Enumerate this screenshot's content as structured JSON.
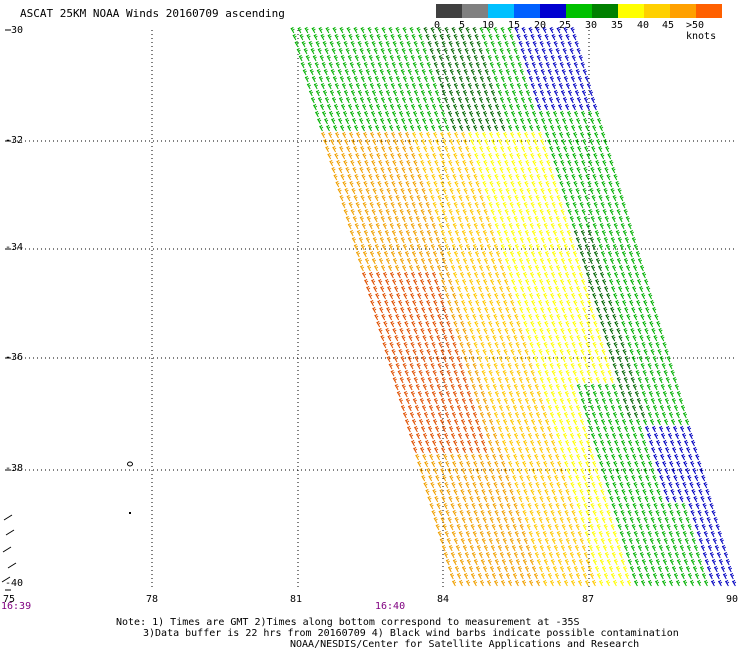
{
  "title": "ASCAT 25KM NOAA Winds 20160709 ascending",
  "legend": {
    "colors": [
      "#404040",
      "#808080",
      "#00c0ff",
      "#0060ff",
      "#0000d0",
      "#00c000",
      "#008000",
      "#ffff00",
      "#ffd000",
      "#ffa000",
      "#ff6000",
      "#e00000",
      "#a02020",
      "#804010",
      "#ff00ff",
      "#c000c0",
      "#8000c0",
      "#400080"
    ],
    "labels": [
      "0",
      "5",
      "10",
      "15",
      "20",
      "25",
      "30",
      "35",
      "40",
      "45",
      ">50 knots"
    ]
  },
  "y_axis": [
    "-30",
    "-32",
    "-34",
    "-36",
    "-38",
    "-40"
  ],
  "x_axis": [
    "75",
    "78",
    "81",
    "84",
    "87",
    "90"
  ],
  "time_labels": [
    "16:39",
    "16:40"
  ],
  "notes": {
    "line1": "Note: 1) Times are GMT 2)Times along bottom correspond to measurement at -35S",
    "line2": "3)Data buffer is 22 hrs from 20160709 4) Black wind barbs indicate possible contamination",
    "line3": "NOAA/NESDIS/Center for Satellite Applications and Research"
  },
  "swath_colors": {
    "green": "#00b000",
    "dark_green": "#006400",
    "yellow": "#ffff00",
    "gold": "#ffc800",
    "orange": "#f0a000",
    "red_orange": "#e05000",
    "blue": "#0000c0"
  }
}
